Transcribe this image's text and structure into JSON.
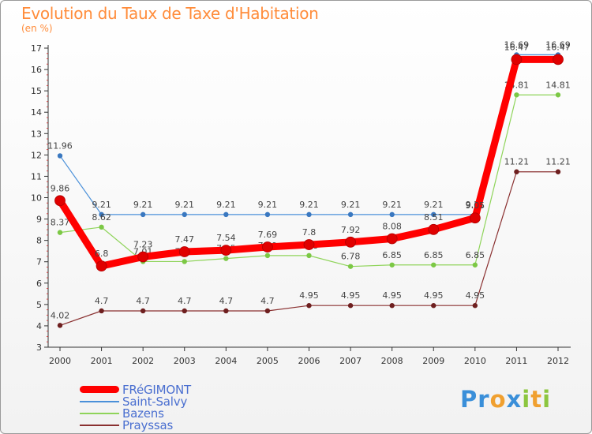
{
  "header": {
    "title": "Evolution du Taux de Taxe d'Habitation",
    "subtitle": "(en %)"
  },
  "logo": {
    "text": "Proxiti",
    "letters": [
      {
        "ch": "P",
        "color": "#3a8fd9"
      },
      {
        "ch": "r",
        "color": "#3a8fd9"
      },
      {
        "ch": "o",
        "color": "#f0a030"
      },
      {
        "ch": "x",
        "color": "#3a8fd9"
      },
      {
        "ch": "i",
        "color": "#8cc63f"
      },
      {
        "ch": "t",
        "color": "#f0a030"
      },
      {
        "ch": "i",
        "color": "#8cc63f"
      }
    ]
  },
  "chart_data": {
    "type": "line",
    "title": "Evolution du Taux de Taxe d'Habitation",
    "ylabel": "(en %)",
    "xlabel": "",
    "ylim": [
      3,
      17
    ],
    "yticks": [
      3,
      4,
      5,
      6,
      7,
      8,
      9,
      10,
      11,
      12,
      13,
      14,
      15,
      16,
      17
    ],
    "grid": false,
    "legend_position": "bottom-left",
    "categories": [
      "2000",
      "2001",
      "2002",
      "2003",
      "2004",
      "2005",
      "2006",
      "2007",
      "2008",
      "2009",
      "2010",
      "2011",
      "2012"
    ],
    "series": [
      {
        "name": "Saint-Salvy",
        "color": "#4a90d9",
        "marker": "#3a78c0",
        "values": [
          11.96,
          9.21,
          9.21,
          9.21,
          9.21,
          9.21,
          9.21,
          9.21,
          9.21,
          9.21,
          9.21,
          16.69,
          16.69
        ],
        "labels": [
          "11.96",
          "9.21",
          "9.21",
          "9.21",
          "9.21",
          "9.21",
          "9.21",
          "9.21",
          "9.21",
          "9.21",
          "9.21",
          "16.69",
          "16.69"
        ]
      },
      {
        "name": "Bazens",
        "color": "#8fd45a",
        "marker": "#7cc845",
        "values": [
          8.37,
          8.62,
          7.01,
          7.01,
          7.15,
          7.29,
          7.29,
          6.78,
          6.85,
          6.85,
          6.85,
          14.81,
          14.81
        ],
        "labels": [
          "8.37",
          "8.62",
          "7.01",
          "7.01",
          "7.15",
          "7.29",
          "7.29",
          "6.78",
          "6.85",
          "6.85",
          "6.85",
          "14.81",
          "14.81"
        ]
      },
      {
        "name": "Prayssas",
        "color": "#8a3030",
        "marker": "#6e1f1f",
        "values": [
          4.02,
          4.7,
          4.7,
          4.7,
          4.7,
          4.7,
          4.95,
          4.95,
          4.95,
          4.95,
          4.95,
          11.21,
          11.21
        ],
        "labels": [
          "4.02",
          "4.7",
          "4.7",
          "4.7",
          "4.7",
          "4.7",
          "4.95",
          "4.95",
          "4.95",
          "4.95",
          "4.95",
          "11.21",
          "11.21"
        ]
      },
      {
        "name": "FRéGIMONT",
        "color": "#ff0000",
        "marker": "#e00000",
        "values": [
          9.86,
          6.8,
          7.23,
          7.47,
          7.54,
          7.69,
          7.8,
          7.92,
          8.08,
          8.51,
          9.05,
          16.47,
          16.47
        ],
        "labels": [
          "9.86",
          "6.8",
          "7.23",
          "7.47",
          "7.54",
          "7.69",
          "7.8",
          "7.92",
          "8.08",
          "8.51",
          "9.05",
          "16.47",
          "16.47"
        ]
      }
    ],
    "legend": [
      {
        "name": "FRéGIMONT",
        "color": "#ff0000"
      },
      {
        "name": "Saint-Salvy",
        "color": "#4a90d9"
      },
      {
        "name": "Bazens",
        "color": "#8fd45a"
      },
      {
        "name": "Prayssas",
        "color": "#8a3030"
      }
    ]
  }
}
